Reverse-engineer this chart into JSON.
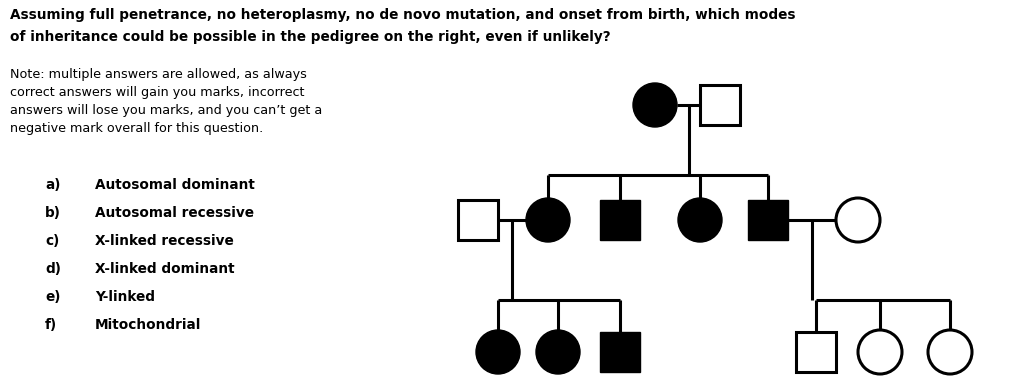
{
  "title_line1": "Assuming full penetrance, no heteroplasmy, no de novo mutation, and onset from birth, which modes",
  "title_line2": "of inheritance could be possible in the pedigree on the right, even if unlikely?",
  "note_lines": [
    "Note: multiple answers are allowed, as always",
    "correct answers will gain you marks, incorrect",
    "answers will lose you marks, and you can’t get a",
    "negative mark overall for this question."
  ],
  "options": [
    [
      "a)",
      "Autosomal dominant"
    ],
    [
      "b)",
      "Autosomal recessive"
    ],
    [
      "c)",
      "X-linked recessive"
    ],
    [
      "d)",
      "X-linked dominant"
    ],
    [
      "e)",
      "Y-linked"
    ],
    [
      "f)",
      "Mitochondrial"
    ]
  ],
  "bg_color": "#ffffff",
  "text_color": "#000000",
  "lw": 2.2
}
